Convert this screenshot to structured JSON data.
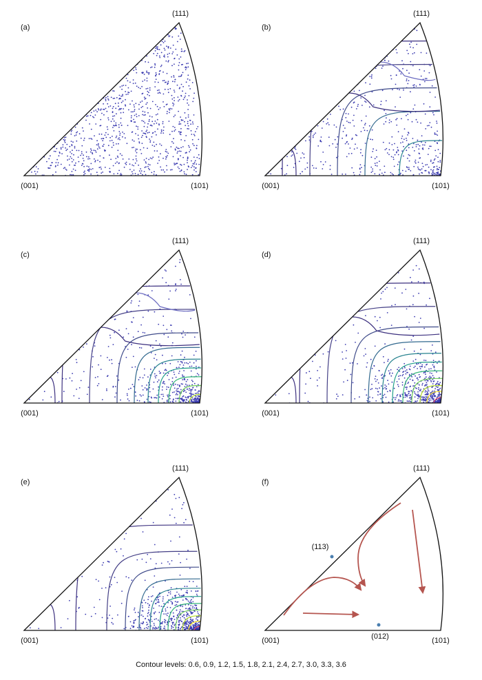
{
  "panels": [
    {
      "label": "(a)",
      "top": "(111)",
      "left": "(001)",
      "right": "(101)"
    },
    {
      "label": "(b)",
      "top": "(111)",
      "left": "(001)",
      "right": "(101)"
    },
    {
      "label": "(c)",
      "top": "(111)",
      "left": "(001)",
      "right": "(101)"
    },
    {
      "label": "(d)",
      "top": "(111)",
      "left": "(001)",
      "right": "(101)"
    },
    {
      "label": "(e)",
      "top": "(111)",
      "left": "(001)",
      "right": "(101)"
    },
    {
      "label": "(f)",
      "top": "(111)",
      "left": "(001)",
      "right": "(101)",
      "annotations": [
        "(113)",
        "(012)"
      ]
    }
  ],
  "caption": "Contour levels: 0.6, 0.9, 1.2, 1.5, 1.8, 2.1, 2.4, 2.7, 3.0, 3.3, 3.6"
}
